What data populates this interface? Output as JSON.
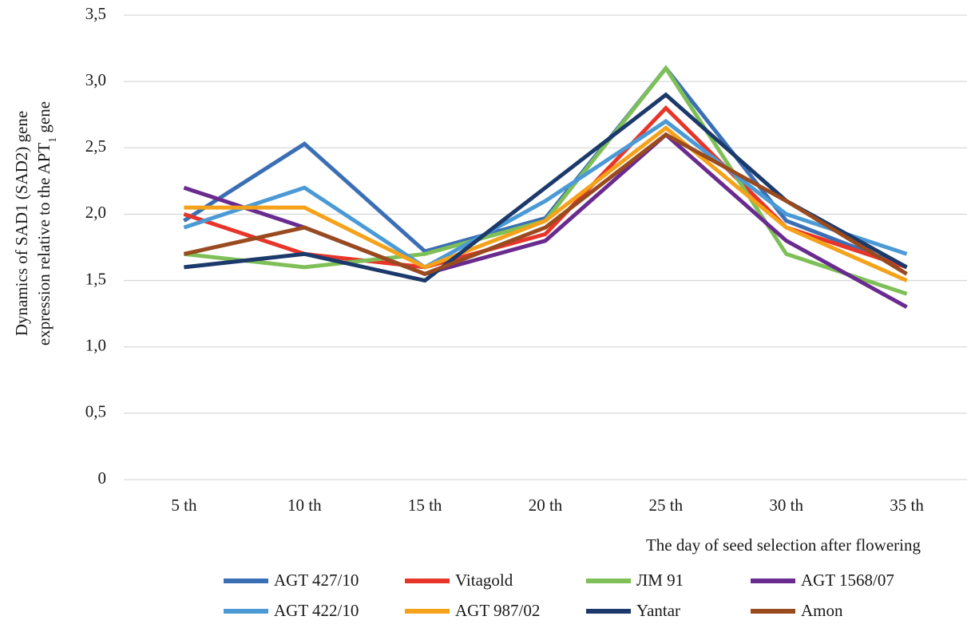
{
  "chart_data": {
    "type": "line",
    "categories": [
      "5 th",
      "10  th",
      "15 th",
      "20 th",
      "25 th",
      "30 th",
      "35 th"
    ],
    "ylim": [
      0,
      3.5
    ],
    "yticks": [
      "0",
      "0,5",
      "1,0",
      "1,5",
      "2,0",
      "2,5",
      "3,0",
      "3,5"
    ],
    "ytick_values": [
      0,
      0.5,
      1.0,
      1.5,
      2.0,
      2.5,
      3.0,
      3.5
    ],
    "xlabel": "The day of seed selection after flowering",
    "ylabel_line1": "Dynamics of SAD1 (SAD2) gene",
    "ylabel_line2_main": "expression relative to the APT",
    "ylabel_line2_sub": "1",
    "ylabel_line2_end": " gene",
    "grid": "horizontal",
    "legend_position": "bottom",
    "series": [
      {
        "name": "AGT 427/10",
        "color": "#3b6fb5",
        "values": [
          1.95,
          2.53,
          1.72,
          1.97,
          3.1,
          1.95,
          1.6
        ]
      },
      {
        "name": "Vitagold",
        "color": "#e8352a",
        "values": [
          2.0,
          1.7,
          1.6,
          1.85,
          2.8,
          1.9,
          1.6
        ]
      },
      {
        "name": "ЛМ 91",
        "color": "#7ec057",
        "values": [
          1.7,
          1.6,
          1.7,
          1.95,
          3.1,
          1.7,
          1.4
        ]
      },
      {
        "name": "AGT 1568/07",
        "color": "#6a2b8f",
        "values": [
          2.2,
          1.9,
          1.55,
          1.8,
          2.6,
          1.8,
          1.3
        ]
      },
      {
        "name": "AGT 422/10",
        "color": "#4b9ad6",
        "values": [
          1.9,
          2.2,
          1.6,
          2.1,
          2.7,
          2.0,
          1.7
        ]
      },
      {
        "name": "AGT 987/02",
        "color": "#f5a21b",
        "values": [
          2.05,
          2.05,
          1.6,
          1.95,
          2.65,
          1.9,
          1.5
        ]
      },
      {
        "name": "Yantar",
        "color": "#1b3a6b",
        "values": [
          1.6,
          1.7,
          1.5,
          2.2,
          2.9,
          2.1,
          1.6
        ]
      },
      {
        "name": "Amon",
        "color": "#9a4a1f",
        "values": [
          1.7,
          1.9,
          1.55,
          1.9,
          2.6,
          2.1,
          1.55
        ]
      }
    ]
  }
}
